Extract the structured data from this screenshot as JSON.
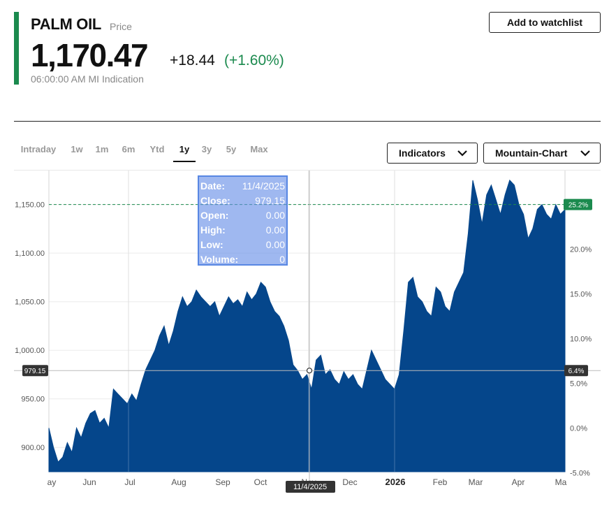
{
  "header": {
    "name": "PALM OIL",
    "type_label": "Price",
    "last_price": "1,170.47",
    "change_abs": "+18.44",
    "change_pct": "(+1.60%)",
    "timestamp": "06:00:00 AM  MI Indication",
    "watchlist_label": "Add to watchlist"
  },
  "colors": {
    "accent": "#1b8a4e",
    "area": "#05468b",
    "tooltip": "#6b8fe6"
  },
  "ranges": [
    {
      "label": "Intraday",
      "active": false
    },
    {
      "label": "1w",
      "active": false
    },
    {
      "label": "1m",
      "active": false
    },
    {
      "label": "6m",
      "active": false
    },
    {
      "label": "Ytd",
      "active": false
    },
    {
      "label": "1y",
      "active": true
    },
    {
      "label": "3y",
      "active": false
    },
    {
      "label": "5y",
      "active": false
    },
    {
      "label": "Max",
      "active": false
    }
  ],
  "controls": {
    "indicators_label": "Indicators",
    "chart_type_label": "Mountain-Chart",
    "chevron_icon": "chevron-down-icon"
  },
  "tooltip": {
    "rows": [
      {
        "k": "Date:",
        "v": "11/4/2025"
      },
      {
        "k": "Close:",
        "v": "979.15"
      },
      {
        "k": "Open:",
        "v": "0.00"
      },
      {
        "k": "High:",
        "v": "0.00"
      },
      {
        "k": "Low:",
        "v": "0.00"
      },
      {
        "k": "Volume:",
        "v": "0"
      }
    ]
  },
  "chart_data": {
    "type": "area",
    "y_axis_left": {
      "range": [
        875,
        1185
      ],
      "ticks": [
        900,
        950,
        1000,
        1050,
        1100,
        1150
      ],
      "tick_labels": [
        "900.00",
        "950.00",
        "1,000.00",
        "1,050.00",
        "1,100.00",
        "1,150.00"
      ]
    },
    "y_axis_right": {
      "ticks": [
        -5,
        0,
        5,
        10,
        15,
        20
      ],
      "tick_labels": [
        "-5.0%",
        "0.0%",
        "5.0%",
        "10.0%",
        "15.0%",
        "20.0%"
      ]
    },
    "x_axis_labels": [
      "ay",
      "Jun",
      "Jul",
      "Aug",
      "Sep",
      "Oct",
      "Nov",
      "Dec",
      "2026",
      "Feb",
      "Mar",
      "Apr",
      "Ma"
    ],
    "crosshair": {
      "date_label": "11/4/2025",
      "value": 979.15,
      "value_label": "979.15",
      "pct_label": "6.4%"
    },
    "reference": {
      "value": 1150,
      "pct_label": "25.2%"
    },
    "series": [
      {
        "values": [
          920,
          900,
          885,
          890,
          905,
          895,
          920,
          910,
          925,
          935,
          938,
          925,
          930,
          920,
          960,
          955,
          950,
          945,
          955,
          948,
          965,
          980,
          990,
          1000,
          1015,
          1025,
          1005,
          1020,
          1040,
          1055,
          1045,
          1050,
          1062,
          1055,
          1050,
          1045,
          1050,
          1035,
          1045,
          1055,
          1048,
          1052,
          1045,
          1060,
          1052,
          1058,
          1070,
          1065,
          1050,
          1040,
          1035,
          1025,
          1010,
          985,
          979,
          970,
          975,
          960,
          990,
          995,
          975,
          980,
          970,
          965,
          978,
          970,
          975,
          965,
          960,
          980,
          1000,
          990,
          980,
          970,
          965,
          960,
          975,
          1020,
          1070,
          1075,
          1055,
          1050,
          1040,
          1035,
          1065,
          1060,
          1045,
          1040,
          1060,
          1070,
          1080,
          1120,
          1175,
          1155,
          1130,
          1160,
          1170,
          1155,
          1140,
          1160,
          1175,
          1170,
          1150,
          1140,
          1115,
          1125,
          1145,
          1150,
          1140,
          1135,
          1150,
          1140,
          1145
        ]
      }
    ]
  }
}
